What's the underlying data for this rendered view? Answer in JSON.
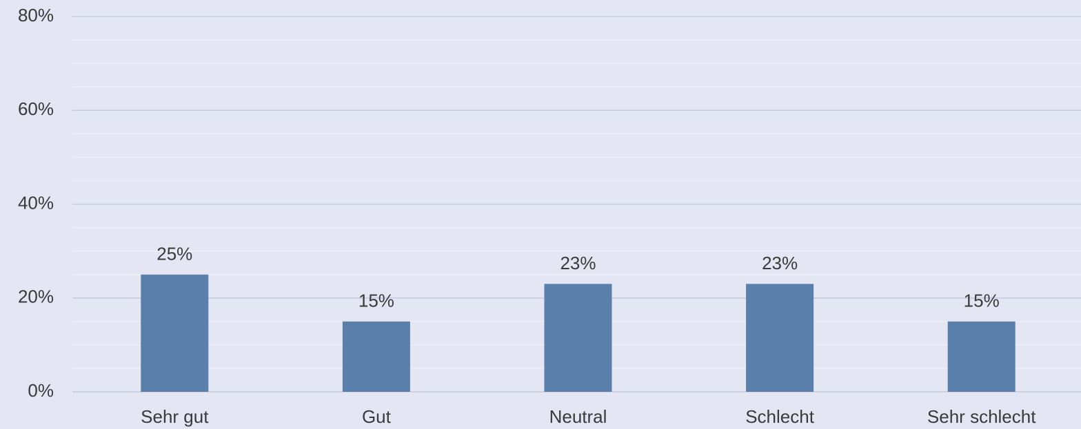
{
  "chart_data": {
    "type": "bar",
    "categories": [
      "Sehr gut",
      "Gut",
      "Neutral",
      "Schlecht",
      "Sehr schlecht"
    ],
    "values": [
      25,
      15,
      23,
      23,
      15
    ],
    "value_labels": [
      "25%",
      "15%",
      "23%",
      "23%",
      "15%"
    ],
    "color": "#5b7fab",
    "ylim": [
      0,
      80
    ],
    "yticks": [
      {
        "value": 0,
        "label": "0%"
      },
      {
        "value": 20,
        "label": "20%"
      },
      {
        "value": 40,
        "label": "40%"
      },
      {
        "value": 60,
        "label": "60%"
      },
      {
        "value": 80,
        "label": "80%"
      }
    ],
    "minor_yticks": [
      5,
      10,
      15,
      25,
      30,
      35,
      45,
      50,
      55,
      65,
      70,
      75
    ],
    "grid": true
  }
}
